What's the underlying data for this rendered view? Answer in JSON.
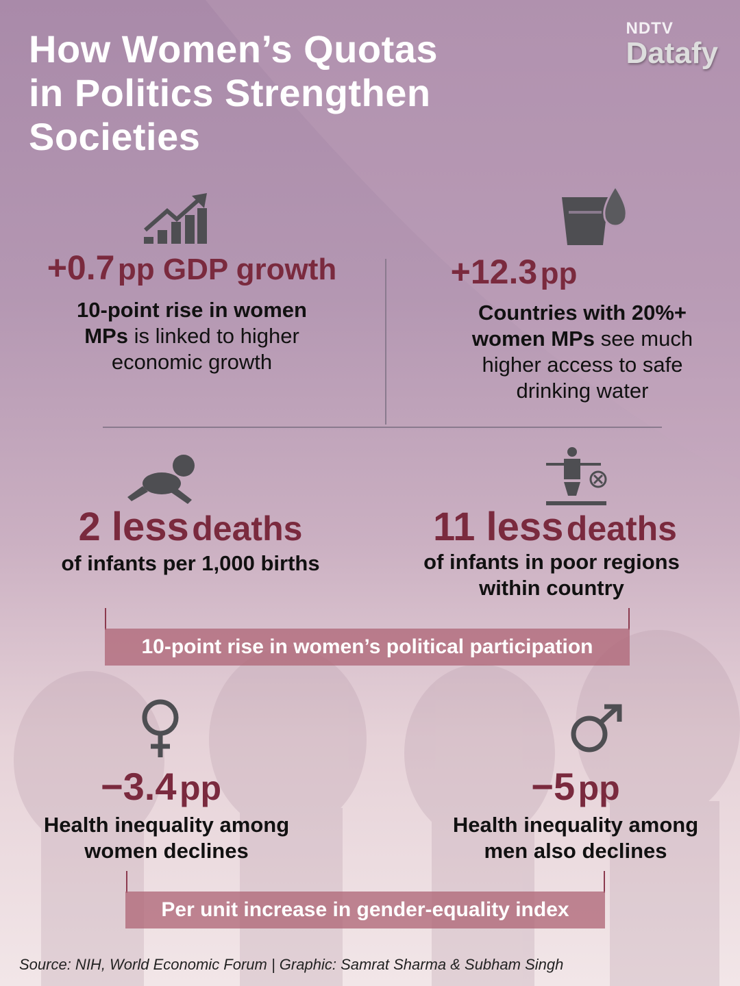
{
  "header": {
    "title_lines": [
      "How Women’s Quotas",
      "in Politics Strengthen",
      "Societies"
    ],
    "brand_top": "NDTV",
    "brand": "Datafy"
  },
  "stats": [
    {
      "value": "+0.7",
      "unit": "pp GDP growth",
      "desc_bold": "10-point rise in women MPs",
      "desc": "is linked to higher economic growth"
    },
    {
      "value": "+12.3",
      "unit": "pp",
      "desc_bold": "Countries with 20%+ women MPs",
      "desc": "see much higher access to safe drinking water"
    },
    {
      "value": "2 less",
      "unit": "deaths",
      "desc": "of infants per 1,000 births"
    },
    {
      "value": "11 less",
      "unit": "deaths",
      "desc": "of infants in poor regions within country"
    },
    {
      "value": "−3.4",
      "unit": "pp",
      "desc": "Health inequality among women declines"
    },
    {
      "value": "−5",
      "unit": "pp",
      "desc": "Health inequality among men also declines"
    }
  ],
  "brackets": [
    "10-point rise in women’s political participation",
    "Per unit increase in gender-equality index"
  ],
  "source": "Source: NIH, World Economic Forum | Graphic: Samrat Sharma & Subham Singh"
}
